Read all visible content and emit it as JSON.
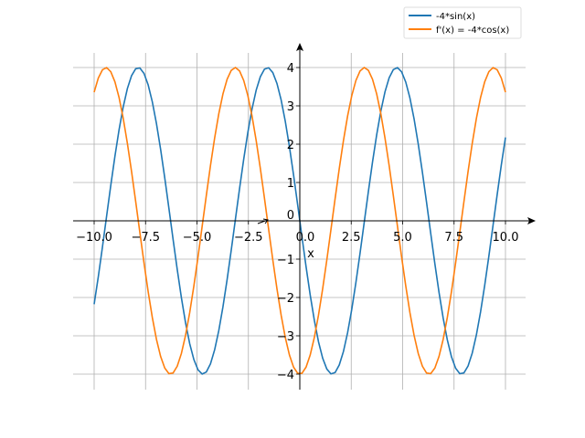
{
  "chart_data": {
    "type": "line",
    "title": "",
    "xlabel": "x",
    "ylabel": "",
    "xlim": [
      -11,
      11.4
    ],
    "ylim": [
      -4.4,
      4.5
    ],
    "grid": true,
    "x_domain": [
      -10,
      10
    ],
    "samples": 100,
    "xticks": [
      -10,
      -7.5,
      -5,
      -2.5,
      0,
      2.5,
      5,
      7.5,
      10
    ],
    "xtick_labels": [
      "−10.0",
      "−7.5",
      "−5.0",
      "−2.5",
      "0.0",
      "2.5",
      "5.0",
      "7.5",
      "10.0"
    ],
    "yticks": [
      -4,
      -3,
      -2,
      -1,
      0,
      1,
      2,
      3,
      4
    ],
    "ytick_labels": [
      "−4",
      "−3",
      "−2",
      "−1",
      "0",
      "1",
      "2",
      "3",
      "4"
    ],
    "series": [
      {
        "name": "-4*sin(x)",
        "function": "-4*sin(x)",
        "amplitude": -4,
        "kind": "sin",
        "color": "#1f77b4"
      },
      {
        "name": "f'(x) = -4*cos(x)",
        "function": "-4*cos(x)",
        "amplitude": -4,
        "kind": "cos",
        "color": "#ff7f0e"
      }
    ],
    "legend_placement": "center-right"
  }
}
